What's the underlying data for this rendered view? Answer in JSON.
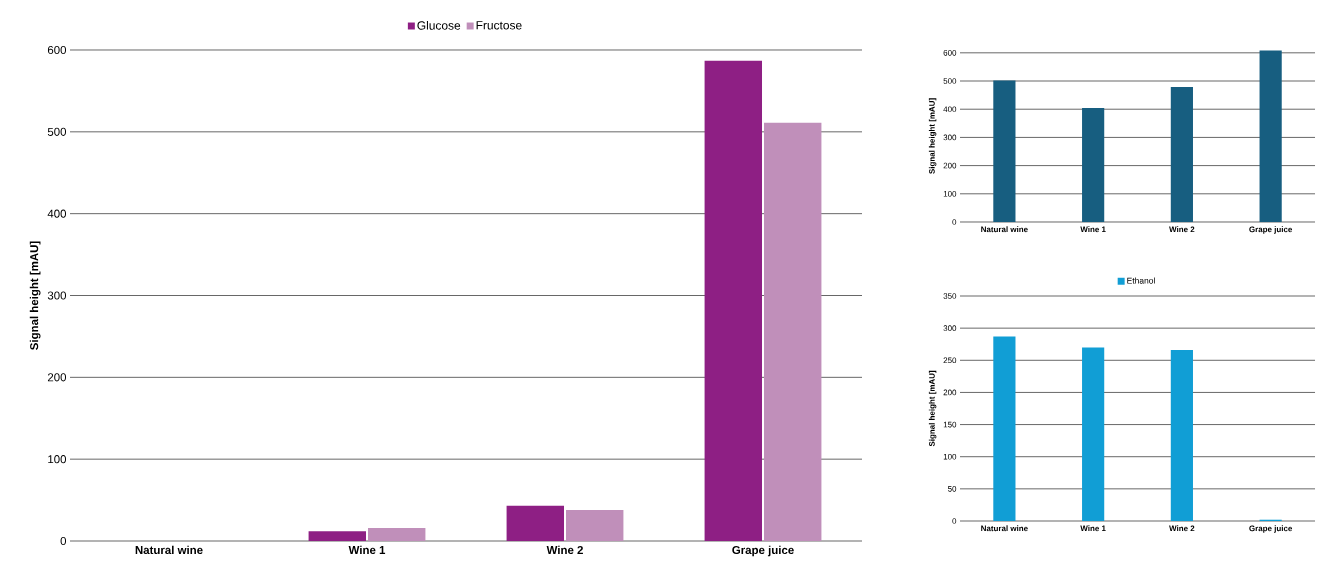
{
  "chart_data": [
    {
      "type": "bar",
      "ylabel": "Signal height [mAU]",
      "categories": [
        "Natural wine",
        "Wine 1",
        "Wine 2",
        "Grape juice"
      ],
      "series": [
        {
          "name": "Glucose",
          "color": "#8e1f84",
          "values": [
            0,
            12,
            43,
            587
          ]
        },
        {
          "name": "Fructose",
          "color": "#c08fba",
          "values": [
            0,
            16,
            38,
            511
          ]
        }
      ],
      "ylim": [
        0,
        600
      ],
      "yticks": [
        0,
        100,
        200,
        300,
        400,
        500,
        600
      ],
      "grid": "y",
      "legend": "top"
    },
    {
      "type": "bar",
      "ylabel": "Signal height [mAU]",
      "categories": [
        "Natural wine",
        "Wine 1",
        "Wine 2",
        "Grape juice"
      ],
      "values": [
        502,
        404,
        479,
        608
      ],
      "color": "#175e80",
      "ylim": [
        0,
        610
      ],
      "yticks": [
        0,
        100,
        200,
        300,
        400,
        500,
        600
      ],
      "grid": "y"
    },
    {
      "type": "bar",
      "ylabel": "Signal height [mAU]",
      "categories": [
        "Natural wine",
        "Wine 1",
        "Wine 2",
        "Grape juice"
      ],
      "series": [
        {
          "name": "Ethanol",
          "color": "#119ed5",
          "values": [
            287,
            270,
            266,
            2
          ]
        }
      ],
      "ylim": [
        0,
        350
      ],
      "yticks": [
        0,
        50,
        100,
        150,
        200,
        250,
        300,
        350
      ],
      "grid": "y",
      "legend": "top"
    }
  ]
}
